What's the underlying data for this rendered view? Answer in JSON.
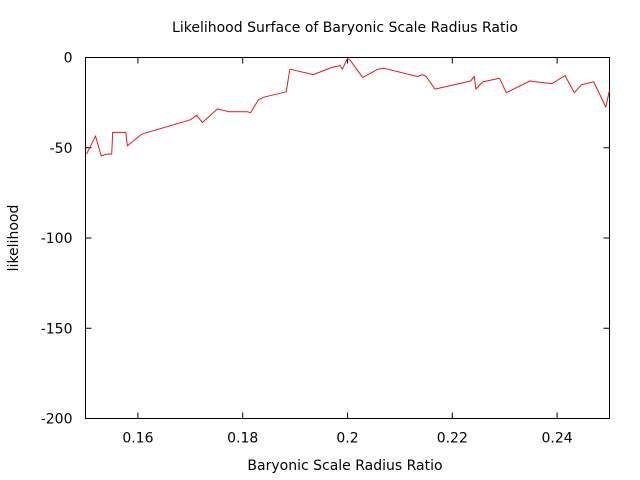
{
  "chart_data": {
    "type": "line",
    "title": "Likelihood Surface of Baryonic Scale Radius Ratio",
    "xlabel": "Baryonic Scale Radius Ratio",
    "ylabel": "likelihood",
    "xlim": [
      0.15,
      0.25
    ],
    "ylim": [
      -200,
      0
    ],
    "x_ticks": [
      0.16,
      0.18,
      0.2,
      0.22,
      0.24
    ],
    "x_tick_labels": [
      "0.16",
      "0.18",
      "0.2",
      "0.22",
      "0.24"
    ],
    "y_ticks": [
      0,
      -50,
      -100,
      -150,
      -200
    ],
    "y_tick_labels": [
      "0",
      "-50",
      "-100",
      "-150",
      "-200"
    ],
    "grid": false,
    "line_color": "#e41a1c",
    "series": [
      {
        "x": [
          0.1502,
          0.1519,
          0.153,
          0.154,
          0.155,
          0.1552,
          0.1577,
          0.158,
          0.1607,
          0.17,
          0.1712,
          0.1723,
          0.1752,
          0.1773,
          0.1808,
          0.1815,
          0.183,
          0.184,
          0.1883,
          0.189,
          0.1935,
          0.197,
          0.1986,
          0.199,
          0.2,
          0.2005,
          0.2029,
          0.2055,
          0.2058,
          0.207,
          0.2133,
          0.2143,
          0.215,
          0.2167,
          0.2235,
          0.2242,
          0.2245,
          0.2258,
          0.229,
          0.2303,
          0.2348,
          0.239,
          0.2415,
          0.2433,
          0.2447,
          0.247,
          0.2493,
          0.25
        ],
        "y": [
          -53.5,
          -43.5,
          -54.5,
          -53.5,
          -53.5,
          -41.5,
          -41.5,
          -49.0,
          -42.5,
          -34.5,
          -32.0,
          -36.0,
          -28.5,
          -30.0,
          -30.0,
          -30.5,
          -23.5,
          -22.0,
          -19.0,
          -6.5,
          -9.5,
          -5.5,
          -4.5,
          -6.5,
          -0.5,
          -1.5,
          -11.0,
          -7.0,
          -6.5,
          -6.0,
          -10.5,
          -9.5,
          -10.5,
          -17.5,
          -13.0,
          -10.5,
          -17.5,
          -13.5,
          -11.5,
          -19.5,
          -13.0,
          -14.5,
          -10.0,
          -19.5,
          -15.0,
          -13.5,
          -27.5,
          -18.0
        ]
      }
    ]
  }
}
